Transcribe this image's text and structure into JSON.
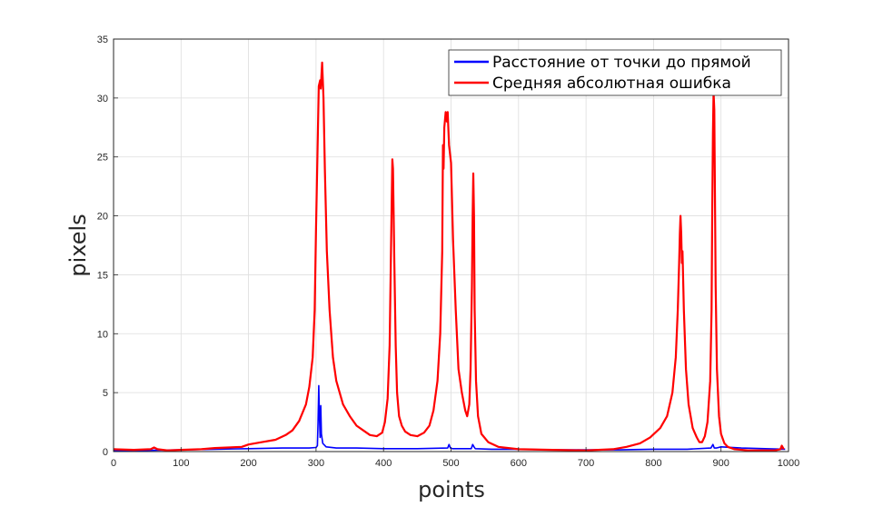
{
  "chart_data": {
    "type": "line",
    "title": "",
    "xlabel": "points",
    "ylabel": "pixels",
    "xlim": [
      0,
      1000
    ],
    "ylim": [
      0,
      35
    ],
    "xticks": [
      0,
      100,
      200,
      300,
      400,
      500,
      600,
      700,
      800,
      900,
      1000
    ],
    "yticks": [
      0,
      5,
      10,
      15,
      20,
      25,
      30,
      35
    ],
    "grid": true,
    "legend_position": "top-right",
    "series": [
      {
        "name": "Расстояние от точки до прямой",
        "color": "#0000ff",
        "x": [
          0,
          50,
          100,
          150,
          200,
          250,
          290,
          300,
          302,
          303,
          304,
          305,
          306,
          307,
          308,
          310,
          315,
          330,
          360,
          400,
          450,
          495,
          497,
          499,
          502,
          530,
          532,
          534,
          536,
          560,
          600,
          650,
          700,
          750,
          800,
          850,
          885,
          888,
          890,
          893,
          900,
          930,
          995
        ],
        "y": [
          0.1,
          0.1,
          0.15,
          0.2,
          0.25,
          0.3,
          0.3,
          0.35,
          0.5,
          2.5,
          5.6,
          3.0,
          1.2,
          3.9,
          1.5,
          0.7,
          0.4,
          0.3,
          0.3,
          0.25,
          0.25,
          0.3,
          0.6,
          0.3,
          0.25,
          0.25,
          0.6,
          0.4,
          0.25,
          0.2,
          0.2,
          0.15,
          0.15,
          0.15,
          0.2,
          0.2,
          0.3,
          0.6,
          0.3,
          0.3,
          0.4,
          0.3,
          0.2
        ]
      },
      {
        "name": "Средняя абсолютная ошибка",
        "color": "#ff0000",
        "x": [
          0,
          30,
          55,
          60,
          65,
          80,
          100,
          130,
          150,
          170,
          190,
          200,
          220,
          240,
          255,
          265,
          275,
          285,
          290,
          295,
          298,
          300,
          302,
          304,
          306,
          307,
          309,
          311,
          313,
          316,
          320,
          325,
          330,
          340,
          350,
          360,
          370,
          380,
          390,
          398,
          402,
          406,
          409,
          411,
          413,
          414,
          416,
          418,
          420,
          423,
          427,
          432,
          440,
          450,
          460,
          468,
          474,
          480,
          484,
          487,
          488,
          489,
          490,
          492,
          494,
          495,
          497,
          500,
          503,
          507,
          511,
          516,
          521,
          524,
          527,
          529,
          531,
          532,
          533,
          534,
          535,
          537,
          540,
          545,
          555,
          570,
          600,
          650,
          700,
          740,
          760,
          780,
          795,
          810,
          820,
          828,
          833,
          836,
          838,
          839,
          840,
          841,
          842,
          843,
          845,
          848,
          852,
          858,
          864,
          868,
          872,
          876,
          880,
          884,
          886,
          887,
          888,
          889,
          890,
          891,
          892,
          894,
          897,
          900,
          905,
          910,
          920,
          940,
          960,
          980,
          988,
          990,
          993
        ],
        "y": [
          0.2,
          0.15,
          0.2,
          0.35,
          0.2,
          0.1,
          0.15,
          0.2,
          0.3,
          0.35,
          0.4,
          0.6,
          0.8,
          1.0,
          1.4,
          1.8,
          2.6,
          4.0,
          5.5,
          8.0,
          12.0,
          19.0,
          25.0,
          31.0,
          31.5,
          30.8,
          33.0,
          30.0,
          24.0,
          17.0,
          12.0,
          8.0,
          6.0,
          4.0,
          3.0,
          2.2,
          1.8,
          1.4,
          1.3,
          1.6,
          2.5,
          4.5,
          9.0,
          17.0,
          24.8,
          24.0,
          16.0,
          9.0,
          5.0,
          3.0,
          2.2,
          1.7,
          1.4,
          1.3,
          1.6,
          2.2,
          3.5,
          6.0,
          10.0,
          17.0,
          26.0,
          24.0,
          27.5,
          28.8,
          28.0,
          28.8,
          26.0,
          24.5,
          18.0,
          12.0,
          7.0,
          5.0,
          3.5,
          3.0,
          4.0,
          7.0,
          14.0,
          20.0,
          23.6,
          20.0,
          12.0,
          6.0,
          3.0,
          1.5,
          0.8,
          0.4,
          0.2,
          0.15,
          0.1,
          0.2,
          0.4,
          0.7,
          1.2,
          2.0,
          3.0,
          5.0,
          8.0,
          12.0,
          16.0,
          18.5,
          20.0,
          18.5,
          16.0,
          17.0,
          12.0,
          7.0,
          4.0,
          2.0,
          1.2,
          0.8,
          0.8,
          1.3,
          2.5,
          6.0,
          12.0,
          20.0,
          27.0,
          30.5,
          29.0,
          22.0,
          14.0,
          7.0,
          3.0,
          1.5,
          0.7,
          0.4,
          0.2,
          0.1,
          0.1,
          0.1,
          0.2,
          0.5,
          0.2
        ]
      }
    ]
  }
}
